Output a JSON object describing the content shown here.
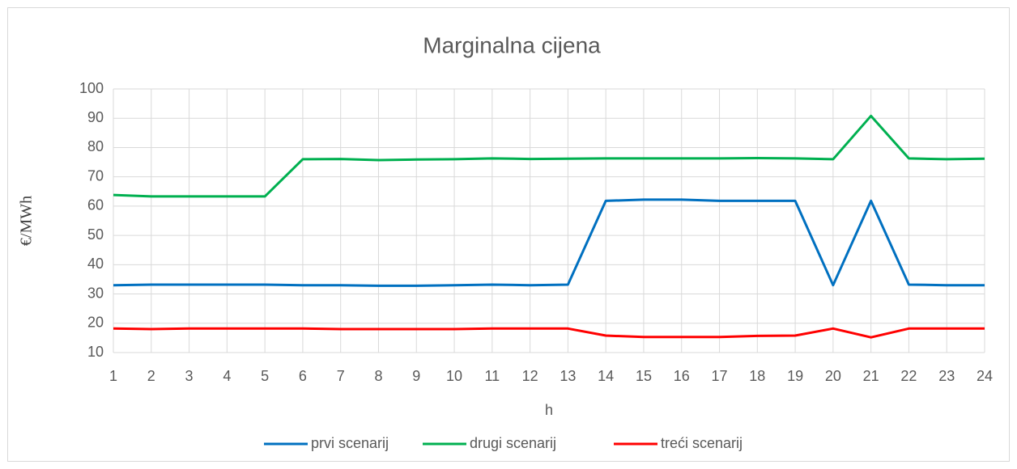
{
  "chart_data": {
    "type": "line",
    "title": "Marginalna cijena",
    "x_label": "h",
    "y_label": "€/MWh",
    "x": [
      1,
      2,
      3,
      4,
      5,
      6,
      7,
      8,
      9,
      10,
      11,
      12,
      13,
      14,
      15,
      16,
      17,
      18,
      19,
      20,
      21,
      22,
      23,
      24
    ],
    "xlim": [
      1,
      24
    ],
    "xticks": [
      1,
      2,
      3,
      4,
      5,
      6,
      7,
      8,
      9,
      10,
      11,
      12,
      13,
      14,
      15,
      16,
      17,
      18,
      19,
      20,
      21,
      22,
      23,
      24
    ],
    "ylim": [
      10,
      100
    ],
    "yticks": [
      10,
      20,
      30,
      40,
      50,
      60,
      70,
      80,
      90,
      100
    ],
    "grid": true,
    "legend": "bottom",
    "series": [
      {
        "name": "prvi scenarij",
        "color": "#0070c0",
        "values": [
          33,
          33.2,
          33.2,
          33.2,
          33.2,
          33,
          33,
          32.8,
          32.8,
          33,
          33.2,
          33,
          33.2,
          61.8,
          62.2,
          62.2,
          61.8,
          61.8,
          61.8,
          33,
          61.8,
          33.2,
          33,
          33
        ]
      },
      {
        "name": "drugi scenarij",
        "color": "#00b050",
        "values": [
          63.8,
          63.3,
          63.3,
          63.3,
          63.3,
          76,
          76.1,
          75.7,
          75.9,
          76,
          76.3,
          76.1,
          76.2,
          76.3,
          76.3,
          76.3,
          76.3,
          76.4,
          76.3,
          76,
          90.8,
          76.3,
          76,
          76.2
        ]
      },
      {
        "name": "treći scenarij",
        "color": "#ff0000",
        "values": [
          18.2,
          18,
          18.2,
          18.2,
          18.2,
          18.2,
          18,
          18,
          18,
          18,
          18.2,
          18.2,
          18.2,
          15.8,
          15.3,
          15.3,
          15.3,
          15.7,
          15.8,
          18.2,
          15.2,
          18.2,
          18.2,
          18.2
        ]
      }
    ]
  }
}
